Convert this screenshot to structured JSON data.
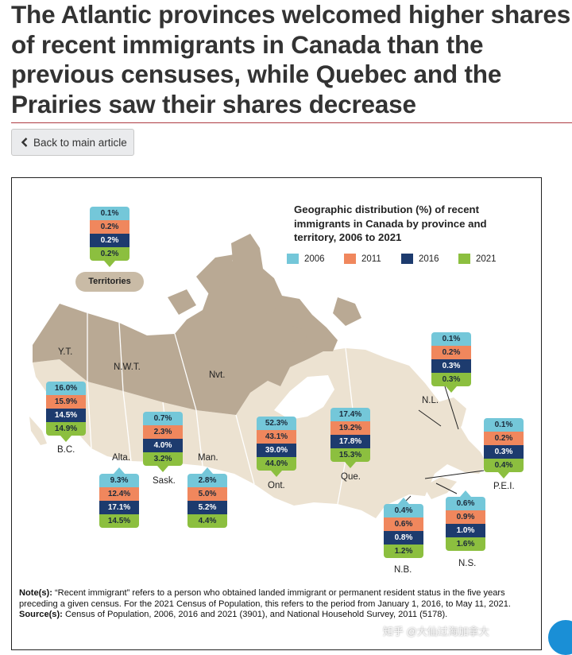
{
  "page": {
    "title": "The Atlantic provinces welcomed higher shares\nof recent immigrants in Canada than the\nprevious censuses, while Quebec and the\nPrairies saw their shares decrease",
    "back_button": "Back to main article"
  },
  "figure": {
    "title": "Geographic distribution (%) of recent immigrants in Canada by province and territory, 2006 to 2021",
    "legend": [
      {
        "label": "2006",
        "color": "#74c7d9"
      },
      {
        "label": "2011",
        "color": "#f0875d"
      },
      {
        "label": "2016",
        "color": "#1d3b6e"
      },
      {
        "label": "2021",
        "color": "#8cbf3f"
      }
    ],
    "territories_label": "Territories",
    "map_labels": {
      "yt": "Y.T.",
      "nwt": "N.W.T.",
      "nvt": "Nvt."
    },
    "regions": [
      {
        "id": "territories",
        "label": "",
        "values": [
          "0.1%",
          "0.2%",
          "0.2%",
          "0.2%"
        ]
      },
      {
        "id": "bc",
        "label": "B.C.",
        "values": [
          "16.0%",
          "15.9%",
          "14.5%",
          "14.9%"
        ]
      },
      {
        "id": "alta",
        "label": "Alta.",
        "values": [
          "9.3%",
          "12.4%",
          "17.1%",
          "14.5%"
        ]
      },
      {
        "id": "sask",
        "label": "Sask.",
        "values": [
          "0.7%",
          "2.3%",
          "4.0%",
          "3.2%"
        ]
      },
      {
        "id": "man",
        "label": "Man.",
        "values": [
          "2.8%",
          "5.0%",
          "5.2%",
          "4.4%"
        ]
      },
      {
        "id": "ont",
        "label": "Ont.",
        "values": [
          "52.3%",
          "43.1%",
          "39.0%",
          "44.0%"
        ]
      },
      {
        "id": "que",
        "label": "Que.",
        "values": [
          "17.4%",
          "19.2%",
          "17.8%",
          "15.3%"
        ]
      },
      {
        "id": "nl",
        "label": "N.L.",
        "values": [
          "0.1%",
          "0.2%",
          "0.3%",
          "0.3%"
        ]
      },
      {
        "id": "pei",
        "label": "P.E.I.",
        "values": [
          "0.1%",
          "0.2%",
          "0.3%",
          "0.4%"
        ]
      },
      {
        "id": "nb",
        "label": "N.B.",
        "values": [
          "0.4%",
          "0.6%",
          "0.8%",
          "1.2%"
        ]
      },
      {
        "id": "ns",
        "label": "N.S.",
        "values": [
          "0.6%",
          "0.9%",
          "1.0%",
          "1.6%"
        ]
      }
    ],
    "notes": {
      "note_label": "Note(s):",
      "note_text": " “Recent immigrant” refers to a person who obtained landed immigrant or permanent resident status in the five years preceding a given census. For the 2021 Census of Population, this refers to the period from January 1, 2016, to May 11, 2021.",
      "source_label": "Source(s):",
      "source_text": " Census of Population, 2006, 2016 and 2021 (3901), and National Household Survey, 2011 (5178)."
    }
  },
  "watermark": "知乎 @大仙过海加拿大"
}
